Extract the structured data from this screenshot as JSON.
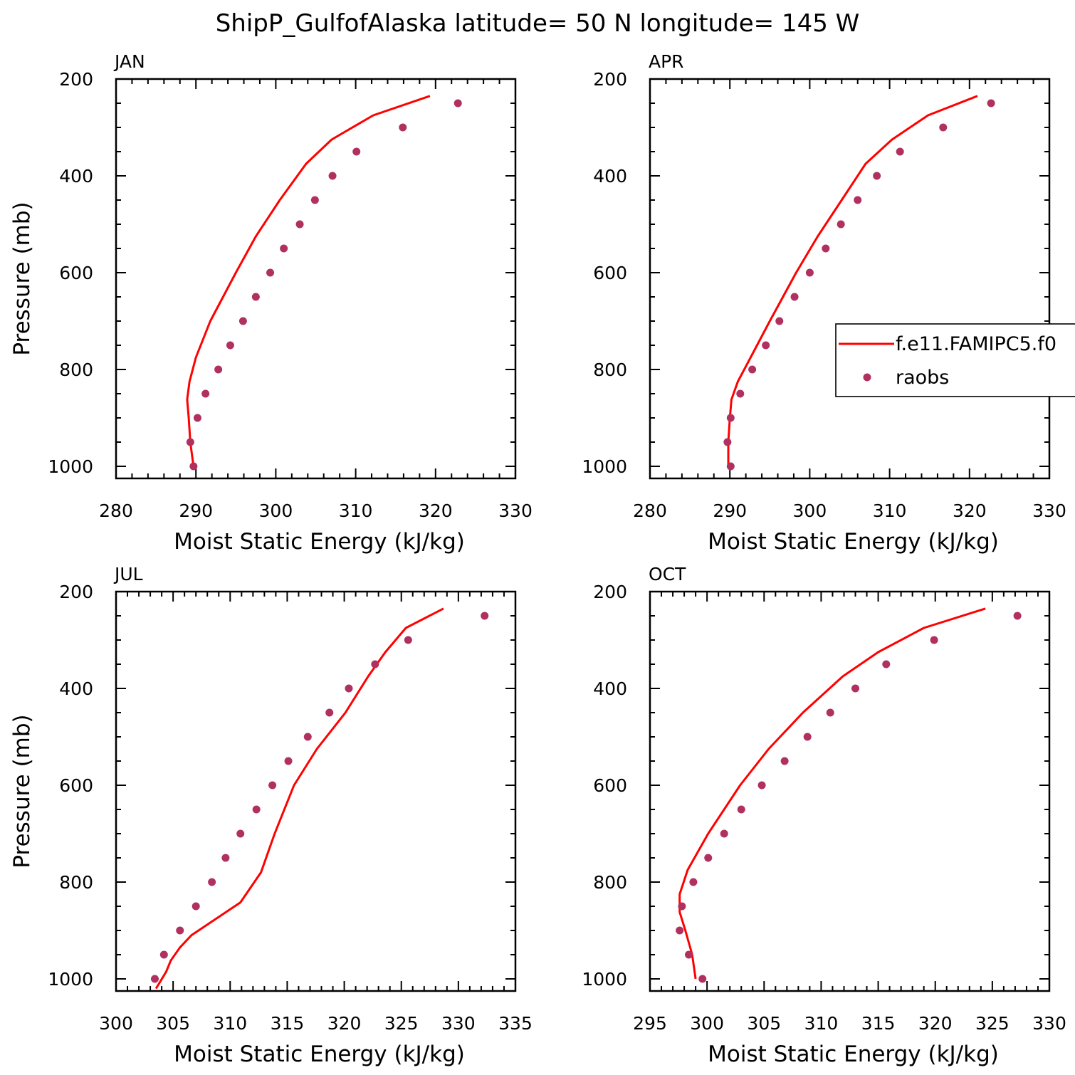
{
  "figure_title": "ShipP_GulfofAlaska  latitude= 50 N longitude= 145 W",
  "colors": {
    "model": "#ff0000",
    "obs": "#b03060",
    "axis": "#000000"
  },
  "legend": {
    "model_label": "f.e11.FAMIPC5.f0",
    "obs_label": "raobs"
  },
  "chart_data": [
    {
      "type": "line",
      "panel_label": "JAN",
      "xlabel": "Moist Static Energy (kJ/kg)",
      "ylabel": "Pressure (mb)",
      "xlim": [
        280,
        330
      ],
      "ylim": [
        1025,
        200
      ],
      "xticks": [
        280,
        290,
        300,
        310,
        320,
        330
      ],
      "yticks": [
        200,
        400,
        600,
        800,
        1000
      ],
      "model": {
        "p": [
          1000,
          950,
          900,
          862,
          825,
          775,
          700,
          600,
          525,
          450,
          375,
          325,
          275,
          235
        ],
        "mse": [
          289.7,
          289.3,
          289.1,
          288.9,
          289.2,
          290.0,
          291.8,
          295.0,
          297.5,
          300.5,
          303.8,
          307.0,
          312.2,
          319.3
        ]
      },
      "raobs": {
        "p": [
          1000,
          950,
          900,
          850,
          800,
          750,
          700,
          650,
          600,
          550,
          500,
          450,
          400,
          350,
          300,
          250
        ],
        "mse": [
          289.7,
          289.3,
          290.2,
          291.2,
          292.8,
          294.3,
          295.9,
          297.5,
          299.3,
          301.0,
          303.0,
          304.9,
          307.1,
          310.1,
          315.9,
          322.8
        ]
      }
    },
    {
      "type": "line",
      "panel_label": "APR",
      "xlabel": "Moist Static Energy (kJ/kg)",
      "ylabel": "",
      "xlim": [
        280,
        330
      ],
      "ylim": [
        1025,
        200
      ],
      "xticks": [
        280,
        290,
        300,
        310,
        320,
        330
      ],
      "yticks": [
        200,
        400,
        600,
        800,
        1000
      ],
      "model": {
        "p": [
          1000,
          950,
          900,
          862,
          825,
          775,
          700,
          600,
          525,
          450,
          375,
          325,
          275,
          235
        ],
        "mse": [
          289.8,
          289.8,
          290.0,
          290.2,
          291.0,
          292.6,
          295.0,
          298.3,
          301.0,
          304.0,
          307.0,
          310.3,
          314.8,
          321.0
        ]
      },
      "raobs": {
        "p": [
          1000,
          950,
          900,
          850,
          800,
          750,
          700,
          650,
          600,
          550,
          500,
          450,
          400,
          350,
          300,
          250
        ],
        "mse": [
          290.1,
          289.7,
          290.1,
          291.3,
          292.8,
          294.5,
          296.2,
          298.1,
          300.0,
          302.0,
          303.9,
          306.0,
          308.4,
          311.3,
          316.7,
          322.7
        ]
      }
    },
    {
      "type": "line",
      "panel_label": "JUL",
      "xlabel": "Moist Static Energy (kJ/kg)",
      "ylabel": "Pressure (mb)",
      "xlim": [
        300,
        335
      ],
      "ylim": [
        1025,
        200
      ],
      "xticks": [
        300,
        305,
        310,
        315,
        320,
        325,
        330,
        335
      ],
      "yticks": [
        200,
        400,
        600,
        800,
        1000
      ],
      "model": {
        "p": [
          1020,
          985,
          962,
          935,
          910,
          842,
          780,
          700,
          600,
          525,
          450,
          375,
          325,
          275,
          235
        ],
        "mse": [
          303.5,
          304.4,
          304.8,
          305.6,
          306.6,
          310.9,
          312.7,
          313.9,
          315.6,
          317.6,
          320.1,
          322.1,
          323.6,
          325.4,
          328.7
        ]
      },
      "raobs": {
        "p": [
          1000,
          950,
          900,
          850,
          800,
          750,
          700,
          650,
          600,
          550,
          500,
          450,
          400,
          350,
          300,
          250
        ],
        "mse": [
          303.4,
          304.2,
          305.6,
          307.0,
          308.4,
          309.6,
          310.9,
          312.3,
          313.7,
          315.1,
          316.8,
          318.7,
          320.4,
          322.7,
          325.6,
          332.3
        ]
      }
    },
    {
      "type": "line",
      "panel_label": "OCT",
      "xlabel": "Moist Static Energy (kJ/kg)",
      "ylabel": "",
      "xlim": [
        295,
        330
      ],
      "ylim": [
        1025,
        200
      ],
      "xticks": [
        295,
        300,
        305,
        310,
        315,
        320,
        325,
        330
      ],
      "yticks": [
        200,
        400,
        600,
        800,
        1000
      ],
      "model": {
        "p": [
          1000,
          950,
          900,
          862,
          825,
          775,
          700,
          600,
          525,
          450,
          375,
          325,
          275,
          235
        ],
        "mse": [
          299.0,
          298.7,
          298.1,
          297.6,
          297.6,
          298.3,
          300.1,
          302.9,
          305.4,
          308.4,
          311.9,
          315.0,
          319.0,
          324.4
        ]
      },
      "raobs": {
        "p": [
          1000,
          950,
          900,
          850,
          800,
          750,
          700,
          650,
          600,
          550,
          500,
          450,
          400,
          350,
          300,
          250
        ],
        "mse": [
          299.6,
          298.4,
          297.6,
          297.8,
          298.8,
          300.1,
          301.5,
          303.0,
          304.8,
          306.8,
          308.8,
          310.8,
          313.0,
          315.7,
          319.9,
          327.2
        ]
      }
    }
  ]
}
